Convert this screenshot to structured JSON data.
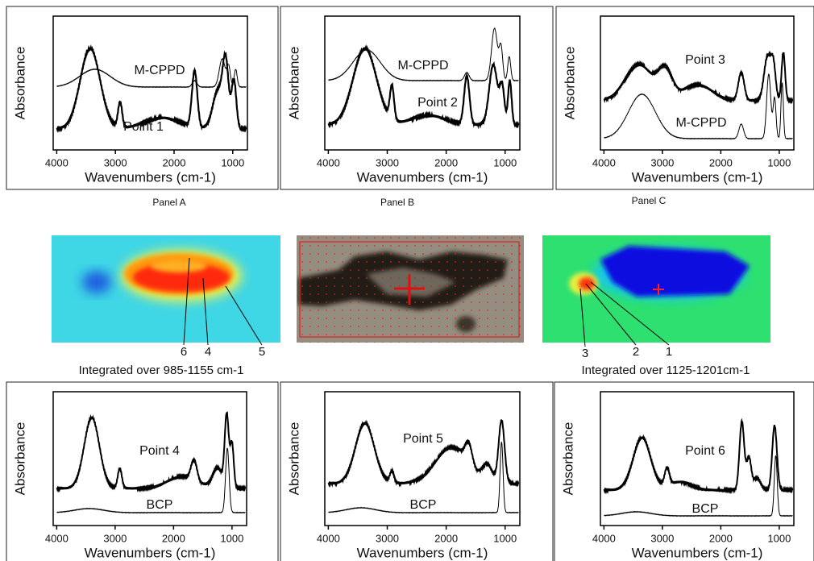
{
  "panels": [
    {
      "caption": "Panel A",
      "y_label": "Absorbance",
      "x_label": "Wavenumbers (cm-1)",
      "xticks": [
        4000,
        3000,
        2000,
        1000
      ],
      "curves": [
        "M-CPPD",
        "Point 1"
      ]
    },
    {
      "caption": "Panel B",
      "y_label": "Absorbance",
      "x_label": "Wavenumbers (cm-1)",
      "xticks": [
        4000,
        3000,
        2000,
        1000
      ],
      "curves": [
        "M-CPPD",
        "Point 2"
      ]
    },
    {
      "caption": "Panel C",
      "y_label": "Absorbance",
      "x_label": "Wavenumbers (cm-1)",
      "xticks": [
        4000,
        3000,
        2000,
        1000
      ],
      "curves": [
        "Point 3",
        "M-CPPD"
      ]
    },
    {
      "y_label": "Absorbance",
      "x_label": "Wavenumbers (cm-1)",
      "xticks": [
        4000,
        3000,
        2000,
        1000
      ],
      "curves": [
        "Point 4",
        "BCP"
      ]
    },
    {
      "y_label": "Absorbance",
      "x_label": "Wavenumbers (cm-1)",
      "xticks": [
        4000,
        3000,
        2000,
        1000
      ],
      "curves": [
        "Point 5",
        "BCP"
      ]
    },
    {
      "y_label": "Absorbance",
      "x_label": "Wavenumbers (cm-1)",
      "xticks": [
        4000,
        3000,
        2000,
        1000
      ],
      "curves": [
        "Point 6",
        "BCP"
      ]
    }
  ],
  "maps": [
    {
      "caption": "Integrated over 985-1155 cm-1",
      "points": [
        "6",
        "4",
        "5"
      ]
    },
    {
      "caption": "Integrated over 1125-1201cm-1",
      "points": [
        "3",
        "2",
        "1"
      ]
    }
  ]
}
